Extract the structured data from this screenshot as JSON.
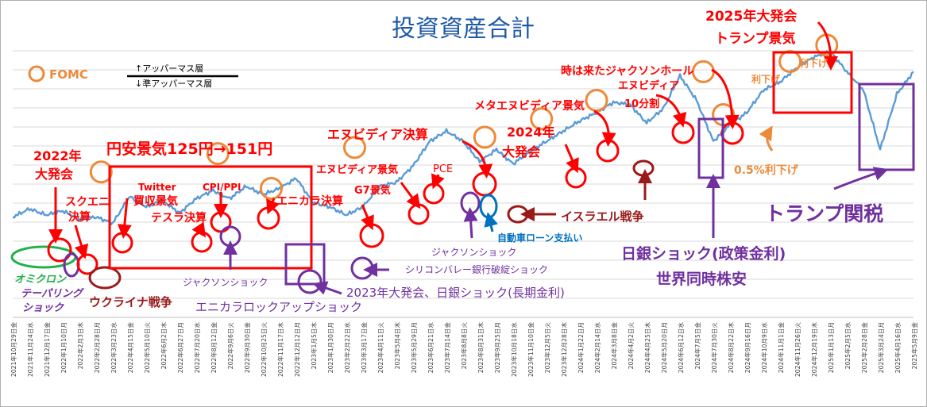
{
  "chart_data": {
    "type": "line",
    "title": "投資資産合計",
    "legend": {
      "fomc": "FOMC",
      "upper": "↑アッパーマス層",
      "lower": "↓準アッパーマス層"
    },
    "x_start": "2021-10-29",
    "x_end": "2025-05-09",
    "tick_labels": [
      "2021年10月29日",
      "2021年11月24日",
      "2021年12月17日",
      "2022年1月10日",
      "2022年2月3日",
      "2022年2月28日",
      "2022年3月23日",
      "2022年4月15日",
      "2022年5月10日",
      "2022年6月2日",
      "2022年6月27日",
      "2022年7月20日",
      "2022年8月12日",
      "2022年9月6日",
      "2022年9月30日",
      "2022年10月25日",
      "2022年11月17日",
      "2022年12月12日",
      "2023年1月5日",
      "2023年1月30日",
      "2023年2月22日",
      "2023年3月17日",
      "2023年4月11日",
      "2023年5月4日",
      "2023年5月29日",
      "2023年6月21日",
      "2023年7月14日",
      "2023年8月8日",
      "2023年8月31日",
      "2023年9月25日",
      "2023年10月18日",
      "2023年11月10日",
      "2023年12月5日",
      "2023年12月28日",
      "2024年1月22日",
      "2024年2月14日",
      "2024年3月8日",
      "2024年4月2日",
      "2024年4月25日",
      "2024年5月20日",
      "2024年6月12日",
      "2024年7月5日",
      "2024年7月30日",
      "2024年8月22日",
      "2024年9月16日",
      "2024年10月9日",
      "2024年11月1日",
      "2024年11月26日",
      "2024年12月19日",
      "2025年1月13日",
      "2025年2月5日",
      "2025年2月28日",
      "2025年3月24日",
      "2025年4月16日",
      "2025年5月9日"
    ],
    "tick_weekdays": [
      "金",
      "水",
      "金",
      "月",
      "木",
      "月",
      "水",
      "金",
      "火",
      "木",
      "月",
      "水",
      "金",
      "火",
      "金",
      "火",
      "木",
      "月",
      "木",
      "月",
      "水",
      "金",
      "火",
      "木",
      "月",
      "水",
      "金",
      "火",
      "木",
      "月",
      "水",
      "金",
      "火",
      "木",
      "月",
      "水",
      "金",
      "火",
      "木",
      "月",
      "水",
      "金",
      "火",
      "木",
      "月",
      "水",
      "金",
      "火",
      "木",
      "月",
      "水",
      "金",
      "月",
      "水",
      "金"
    ],
    "ylim": [
      0,
      100
    ],
    "series": [
      {
        "x": [
          0,
          1,
          2,
          3,
          4,
          5,
          6,
          7,
          8,
          9,
          10,
          11,
          12,
          13,
          14,
          15,
          16,
          17,
          18,
          19,
          20,
          21,
          22,
          23,
          24,
          25,
          26,
          27,
          28,
          29,
          30,
          31,
          32,
          33,
          34,
          35,
          36,
          37,
          38,
          39,
          40,
          41,
          42,
          43,
          44,
          45,
          46,
          47,
          48,
          49,
          50,
          51,
          52,
          53,
          54
        ],
        "values": [
          18,
          22,
          19,
          21,
          17,
          18,
          15,
          28,
          23,
          26,
          20,
          27,
          31,
          27,
          33,
          29,
          32,
          37,
          25,
          23,
          19,
          23,
          33,
          35,
          43,
          55,
          60,
          55,
          45,
          51,
          44,
          50,
          55,
          60,
          65,
          69,
          74,
          73,
          64,
          71,
          87,
          75,
          55,
          63,
          69,
          80,
          84,
          91,
          96,
          99,
          89,
          80,
          51,
          78,
          89
        ]
      }
    ],
    "markers": [
      {
        "x": 5.3,
        "v": 40
      },
      {
        "x": 12.3,
        "v": 49
      },
      {
        "x": 15.5,
        "v": 32
      },
      {
        "x": 20.5,
        "v": 52
      },
      {
        "x": 28.3,
        "v": 57
      },
      {
        "x": 31.7,
        "v": 66
      },
      {
        "x": 35.0,
        "v": 75
      },
      {
        "x": 41.4,
        "v": 89
      },
      {
        "x": 42.6,
        "v": 68
      },
      {
        "x": 46.6,
        "v": 94
      },
      {
        "x": 48.8,
        "v": 102
      }
    ],
    "annotations": [
      {
        "text": "2022年"
      },
      {
        "text": "大発会"
      },
      {
        "text": "スクエニ"
      },
      {
        "text": "決算"
      },
      {
        "text": "オミクロン"
      },
      {
        "text": "テーパリング"
      },
      {
        "text": "ショック"
      },
      {
        "text": "ウクライナ戦争"
      },
      {
        "text": "円安景気125円→151円"
      },
      {
        "text": "Twitter"
      },
      {
        "text": "買収景気"
      },
      {
        "text": "テスラ決算"
      },
      {
        "text": "CPI/PPI"
      },
      {
        "text": "ジャクソンショック"
      },
      {
        "text": "エニカラ決算"
      },
      {
        "text": "エニカラロックアップショック"
      },
      {
        "text": "エヌビディア景気"
      },
      {
        "text": "G7景気"
      },
      {
        "text": "PCE"
      },
      {
        "text": "エヌビディア決算"
      },
      {
        "text": "シリコンバレー銀行破綻ショック"
      },
      {
        "text": "2023年大発会、日銀ショック(長期金利)"
      },
      {
        "text": "ジャクソンショック"
      },
      {
        "text": "自動車ローン支払い"
      },
      {
        "text": "イスラエル戦争"
      },
      {
        "text": "メタエヌビディア景気"
      },
      {
        "text": "2024年"
      },
      {
        "text": "大発会"
      },
      {
        "text": "時は来たジャクソンホール"
      },
      {
        "text": "エヌビディア"
      },
      {
        "text": "10分割"
      },
      {
        "text": "日銀ショック(政策金利)"
      },
      {
        "text": "世界同時株安"
      },
      {
        "text": "0.5%利下げ"
      },
      {
        "text": "利下げ"
      },
      {
        "text": "利下げ"
      },
      {
        "text": "2025年大発会"
      },
      {
        "text": "トランプ景気"
      },
      {
        "text": "トランプ関税"
      }
    ],
    "colors": {
      "line": "#5b9bd5",
      "red": "#ff0000",
      "orange": "#ed8a3a",
      "purple": "#7030a0",
      "darkred": "#9a1a1a",
      "green": "#22b14c",
      "title": "#1f5aa6"
    }
  }
}
